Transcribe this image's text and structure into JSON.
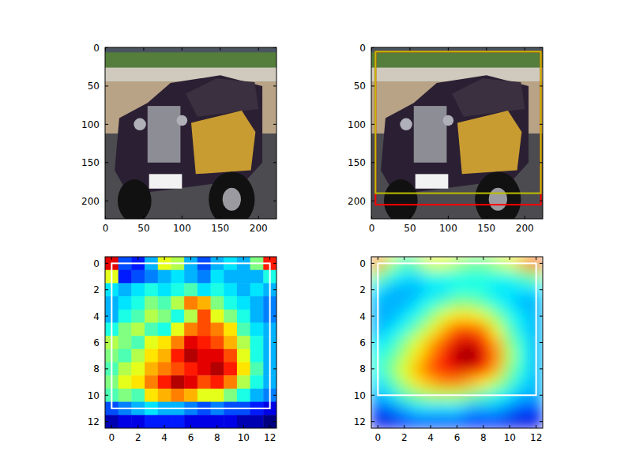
{
  "chart_data": [
    {
      "type": "image",
      "xlim": [
        -0.5,
        223.5
      ],
      "ylim": [
        223.5,
        -0.5
      ],
      "xticks": [
        0,
        50,
        100,
        150,
        200
      ],
      "yticks": [
        0,
        50,
        100,
        150,
        200
      ]
    },
    {
      "type": "image",
      "xlim": [
        -0.5,
        223.5
      ],
      "ylim": [
        223.5,
        -0.5
      ],
      "xticks": [
        0,
        50,
        100,
        150,
        200
      ],
      "yticks": [
        0,
        50,
        100,
        150,
        200
      ],
      "boxes": [
        {
          "color": "#ff0000",
          "x0": 5,
          "y0": 5,
          "x1": 221,
          "y1": 205
        },
        {
          "color": "#bfbf00",
          "x0": 5,
          "y0": 5,
          "x1": 221,
          "y1": 190
        }
      ]
    },
    {
      "type": "heatmap",
      "xlim": [
        -0.5,
        12.5
      ],
      "ylim": [
        12.5,
        -0.5
      ],
      "xticks": [
        0,
        2,
        4,
        6,
        8,
        10,
        12
      ],
      "yticks": [
        0,
        2,
        4,
        6,
        8,
        10,
        12
      ],
      "cells": [
        [
          0.9,
          0.2,
          0.15,
          0.3,
          0.6,
          0.55,
          0.3,
          0.2,
          0.3,
          0.35,
          0.3,
          0.5,
          0.85
        ],
        [
          0.6,
          0.15,
          0.2,
          0.25,
          0.3,
          0.35,
          0.3,
          0.25,
          0.35,
          0.3,
          0.3,
          0.3,
          0.4
        ],
        [
          0.35,
          0.3,
          0.35,
          0.4,
          0.35,
          0.4,
          0.45,
          0.35,
          0.4,
          0.35,
          0.3,
          0.35,
          0.3
        ],
        [
          0.3,
          0.35,
          0.4,
          0.5,
          0.45,
          0.55,
          0.75,
          0.7,
          0.5,
          0.4,
          0.35,
          0.3,
          0.25
        ],
        [
          0.3,
          0.4,
          0.45,
          0.55,
          0.5,
          0.4,
          0.55,
          0.8,
          0.6,
          0.5,
          0.4,
          0.3,
          0.25
        ],
        [
          0.4,
          0.5,
          0.55,
          0.45,
          0.4,
          0.6,
          0.75,
          0.8,
          0.75,
          0.65,
          0.45,
          0.35,
          0.3
        ],
        [
          0.55,
          0.5,
          0.45,
          0.6,
          0.65,
          0.75,
          0.9,
          0.85,
          0.8,
          0.7,
          0.55,
          0.4,
          0.3
        ],
        [
          0.5,
          0.45,
          0.55,
          0.65,
          0.7,
          0.85,
          0.95,
          0.9,
          0.9,
          0.8,
          0.6,
          0.4,
          0.3
        ],
        [
          0.45,
          0.55,
          0.6,
          0.7,
          0.75,
          0.8,
          0.85,
          0.9,
          0.95,
          0.85,
          0.65,
          0.45,
          0.3
        ],
        [
          0.5,
          0.6,
          0.65,
          0.75,
          0.85,
          0.95,
          0.9,
          0.8,
          0.85,
          0.75,
          0.55,
          0.4,
          0.3
        ],
        [
          0.45,
          0.5,
          0.45,
          0.65,
          0.7,
          0.75,
          0.7,
          0.6,
          0.6,
          0.5,
          0.4,
          0.3,
          0.25
        ],
        [
          0.2,
          0.25,
          0.3,
          0.35,
          0.3,
          0.3,
          0.25,
          0.2,
          0.25,
          0.2,
          0.2,
          0.15,
          0.1
        ],
        [
          0.05,
          0.1,
          0.1,
          0.15,
          0.15,
          0.15,
          0.1,
          0.1,
          0.1,
          0.1,
          0.05,
          0.05,
          0.0
        ]
      ],
      "box": {
        "color": "#ffffff",
        "x0": 0,
        "y0": 0,
        "x1": 12,
        "y1": 11
      }
    },
    {
      "type": "smooth",
      "xlim": [
        -0.5,
        12.5
      ],
      "ylim": [
        12.5,
        -0.5
      ],
      "xticks": [
        0,
        2,
        4,
        6,
        8,
        10,
        12
      ],
      "yticks": [
        0,
        2,
        4,
        6,
        8,
        10,
        12
      ],
      "cells": [
        [
          0.75,
          0.55,
          0.45,
          0.5,
          0.6,
          0.6,
          0.55,
          0.5,
          0.5,
          0.55,
          0.6,
          0.7,
          0.8
        ],
        [
          0.5,
          0.4,
          0.35,
          0.35,
          0.4,
          0.4,
          0.4,
          0.4,
          0.4,
          0.4,
          0.4,
          0.45,
          0.5
        ],
        [
          0.35,
          0.3,
          0.3,
          0.3,
          0.35,
          0.35,
          0.4,
          0.4,
          0.4,
          0.35,
          0.35,
          0.35,
          0.35
        ],
        [
          0.3,
          0.3,
          0.3,
          0.35,
          0.4,
          0.45,
          0.5,
          0.5,
          0.45,
          0.4,
          0.35,
          0.3,
          0.3
        ],
        [
          0.3,
          0.3,
          0.35,
          0.4,
          0.5,
          0.6,
          0.65,
          0.65,
          0.6,
          0.5,
          0.4,
          0.35,
          0.3
        ],
        [
          0.3,
          0.35,
          0.4,
          0.5,
          0.6,
          0.7,
          0.8,
          0.8,
          0.75,
          0.6,
          0.45,
          0.35,
          0.3
        ],
        [
          0.35,
          0.4,
          0.5,
          0.6,
          0.7,
          0.8,
          0.9,
          0.92,
          0.85,
          0.7,
          0.5,
          0.4,
          0.3
        ],
        [
          0.4,
          0.45,
          0.55,
          0.65,
          0.75,
          0.85,
          0.95,
          1.0,
          0.9,
          0.75,
          0.55,
          0.4,
          0.3
        ],
        [
          0.4,
          0.5,
          0.6,
          0.7,
          0.8,
          0.85,
          0.9,
          0.9,
          0.85,
          0.7,
          0.5,
          0.4,
          0.3
        ],
        [
          0.35,
          0.45,
          0.55,
          0.65,
          0.7,
          0.75,
          0.75,
          0.7,
          0.65,
          0.55,
          0.45,
          0.35,
          0.3
        ],
        [
          0.3,
          0.35,
          0.45,
          0.5,
          0.55,
          0.55,
          0.55,
          0.5,
          0.45,
          0.4,
          0.35,
          0.3,
          0.3
        ],
        [
          0.2,
          0.25,
          0.3,
          0.35,
          0.35,
          0.35,
          0.35,
          0.3,
          0.3,
          0.3,
          0.25,
          0.2,
          0.2
        ],
        [
          0.1,
          0.1,
          0.15,
          0.2,
          0.2,
          0.2,
          0.2,
          0.15,
          0.15,
          0.15,
          0.1,
          0.1,
          0.1
        ]
      ],
      "box": {
        "color": "#ffffff",
        "x0": 0,
        "y0": 0,
        "x1": 12,
        "y1": 10
      }
    }
  ]
}
